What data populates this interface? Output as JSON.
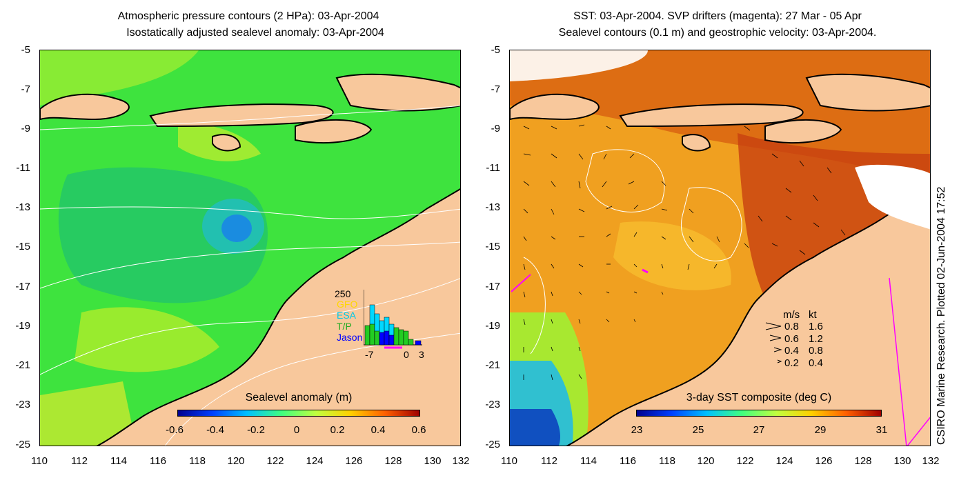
{
  "left": {
    "title1": "Atmospheric pressure contours (2 HPa): 03-Apr-2004",
    "title2": "Isostatically adjusted sealevel anomaly: 03-Apr-2004",
    "colorbar": {
      "title": "Sealevel anomaly (m)",
      "labels": [
        "-0.6",
        "-0.4",
        "-0.2",
        "0",
        "0.2",
        "0.4",
        "0.6"
      ]
    },
    "histogram": {
      "ytick": "250",
      "legend": [
        "GFO",
        "ESA",
        "T/P",
        "Jason"
      ],
      "xticks": [
        "-7",
        "0",
        "3"
      ],
      "colors": [
        "#ffd700",
        "#00d8ff",
        "#22cc22",
        "#0000ff"
      ]
    }
  },
  "right": {
    "title1": "SST: 03-Apr-2004. SVP drifters (magenta): 27 Mar - 05 Apr",
    "title2": "Sealevel contours (0.1 m) and geostrophic velocity: 03-Apr-2004.",
    "colorbar": {
      "title": "3-day SST composite (deg C)",
      "labels": [
        "23",
        "25",
        "27",
        "29",
        "31"
      ]
    },
    "vector_legend": {
      "header_ms": "m/s",
      "header_kt": "kt",
      "rows": [
        {
          "ms": "0.8",
          "kt": "1.6"
        },
        {
          "ms": "0.6",
          "kt": "1.2"
        },
        {
          "ms": "0.4",
          "kt": "0.8"
        },
        {
          "ms": "0.2",
          "kt": "0.4"
        }
      ]
    }
  },
  "yticks": [
    "-5",
    "-7",
    "-9",
    "-11",
    "-13",
    "-15",
    "-17",
    "-19",
    "-21",
    "-23",
    "-25"
  ],
  "xticks": [
    "110",
    "112",
    "114",
    "116",
    "118",
    "120",
    "122",
    "124",
    "126",
    "128",
    "130",
    "132"
  ],
  "credit": "CSIRO Marine Research. Plotted 02-Jun-2004 17:52",
  "colors": {
    "land": "#f8c89c",
    "sla_ocean": "#3ee33e",
    "sst_ocean": "#f0a020",
    "magenta": "#ff00ff"
  }
}
